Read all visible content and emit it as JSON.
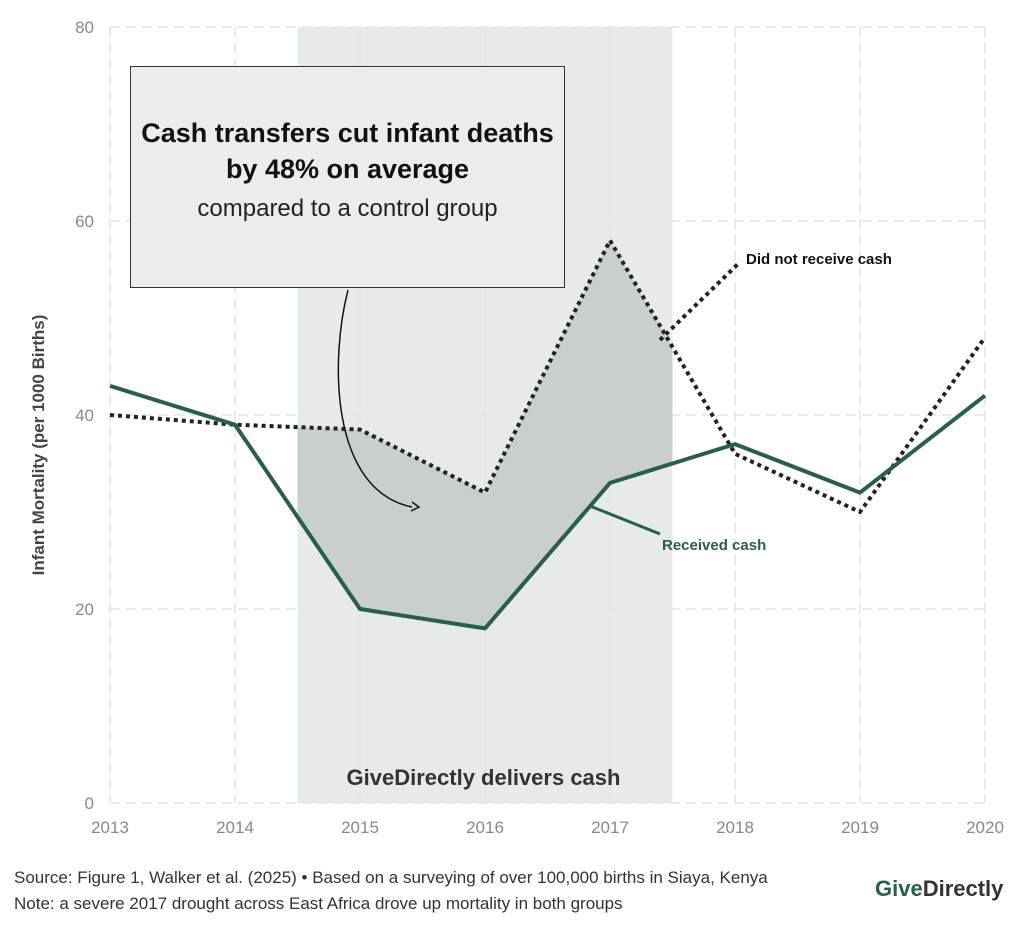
{
  "chart_data": {
    "type": "line",
    "title": "Cash transfers cut infant deaths by 48% on average",
    "subtitle": "compared to a control group",
    "xlabel": "",
    "ylabel": "Infant Mortality (per 1000 Births)",
    "x": [
      2013,
      2014,
      2015,
      2016,
      2017,
      2018,
      2019,
      2020
    ],
    "xlim": [
      2013,
      2020
    ],
    "ylim": [
      0,
      80
    ],
    "yticks": [
      0,
      20,
      40,
      60,
      80
    ],
    "grid": true,
    "series": [
      {
        "name": "Did not receive cash",
        "values": [
          40,
          39,
          38.5,
          32,
          58,
          36,
          30,
          48
        ],
        "style": "dotted",
        "color": "#222222"
      },
      {
        "name": "Received cash",
        "values": [
          43,
          39,
          20,
          18,
          33,
          37,
          32,
          42
        ],
        "style": "solid",
        "color": "#2a5e48"
      }
    ],
    "highlight": {
      "from": 2014.5,
      "to": 2017.5,
      "label": "GiveDirectly delivers cash",
      "color": "#e6ebe8"
    }
  },
  "footer": {
    "source": "Source: Figure 1, Walker et al. (2025) • Based on a surveying of over 100,000 births in Siaya, Kenya",
    "note": "Note: a severe 2017 drought across East Africa drove up mortality in both groups",
    "logo_give": "Give",
    "logo_directly": "Directly"
  },
  "colors": {
    "received": "#2a5e48",
    "control": "#222222",
    "shade": "#c9cfcb"
  }
}
